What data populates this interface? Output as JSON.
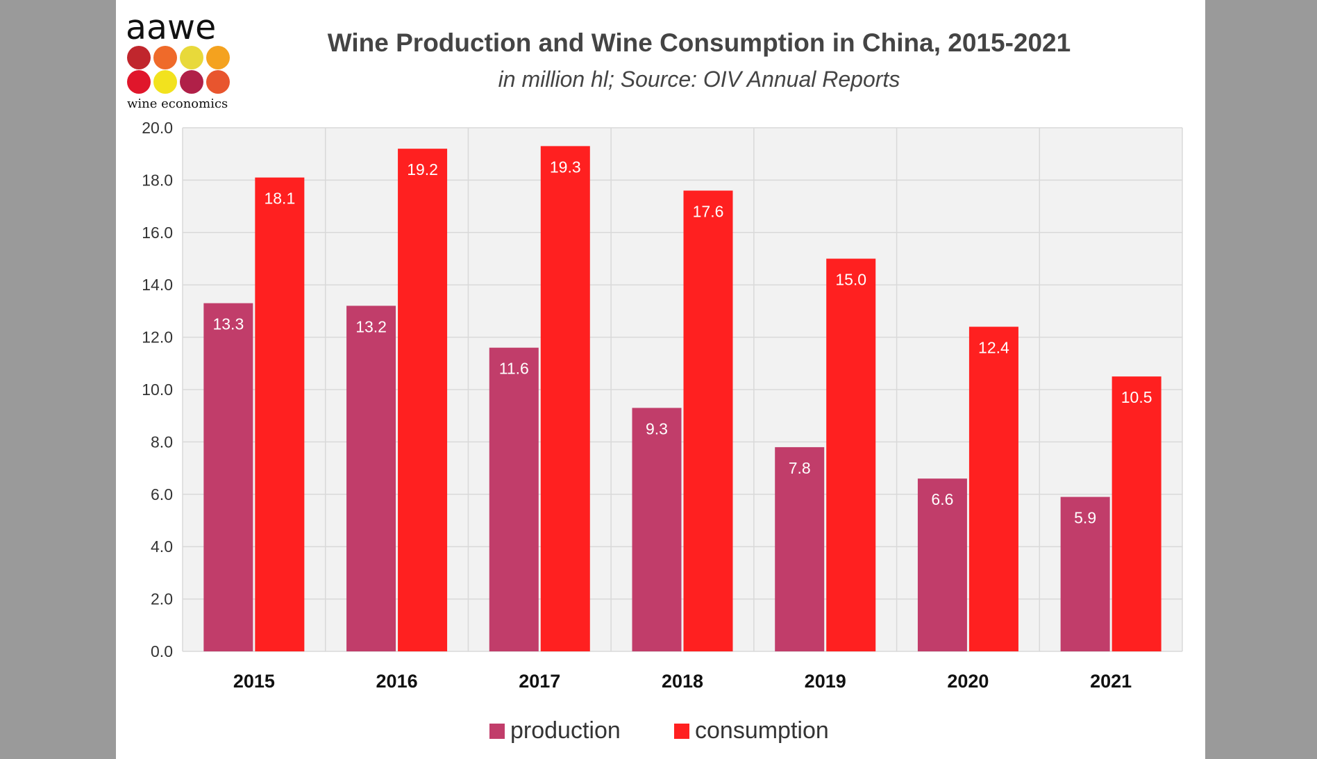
{
  "logo": {
    "wordmark": "aawe",
    "tagline": "wine economics",
    "dot_colors": [
      "#c0262d",
      "#ef6a2a",
      "#e8d93a",
      "#f4a21f",
      "#e0162b",
      "#f2e21e",
      "#b02048",
      "#e8552e"
    ]
  },
  "chart_data": {
    "type": "bar",
    "title": "Wine Production and Wine Consumption in China, 2015-2021",
    "subtitle": "in million hl; Source: OIV Annual Reports",
    "categories": [
      "2015",
      "2016",
      "2017",
      "2018",
      "2019",
      "2020",
      "2021"
    ],
    "series": [
      {
        "name": "production",
        "color": "#c13d6a",
        "values": [
          13.3,
          13.2,
          11.6,
          9.3,
          7.8,
          6.6,
          5.9
        ]
      },
      {
        "name": "consumption",
        "color": "#ff2020",
        "values": [
          18.1,
          19.2,
          19.3,
          17.6,
          15.0,
          12.4,
          10.5
        ]
      }
    ],
    "ylim": [
      0,
      20
    ],
    "yticks": [
      "0.0",
      "2.0",
      "4.0",
      "6.0",
      "8.0",
      "10.0",
      "12.0",
      "14.0",
      "16.0",
      "18.0",
      "20.0"
    ],
    "xlabel": "",
    "ylabel": "",
    "grid": true,
    "legend": "bottom-center",
    "plot_background": "#f2f2f2",
    "grid_color": "#d9d9d9"
  }
}
